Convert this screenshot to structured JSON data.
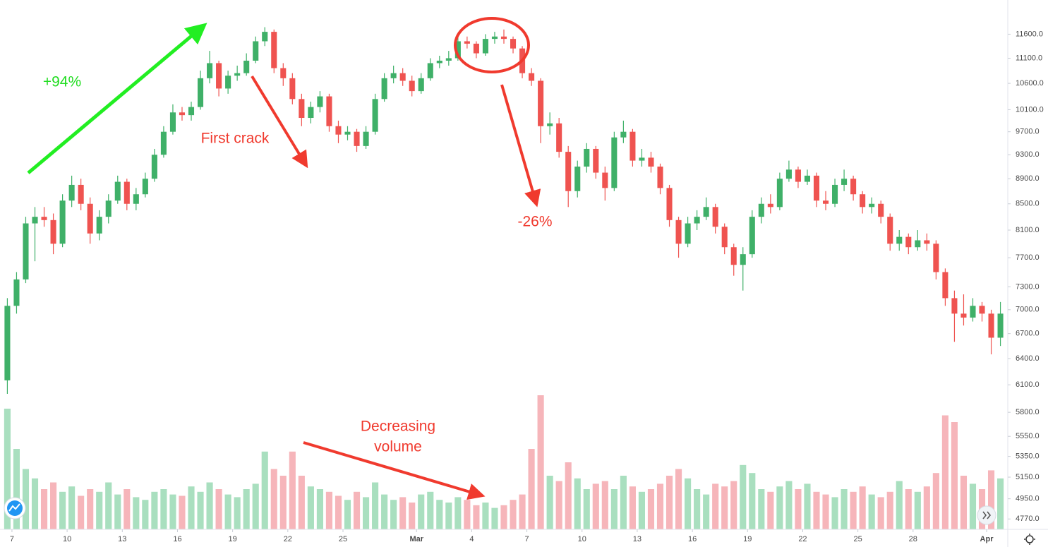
{
  "chart_data": {
    "type": "candlestick",
    "x": [
      -0.25,
      0.25,
      0.75,
      1.25,
      1.75,
      2.25,
      2.75,
      3.25,
      3.75,
      4.25,
      4.75,
      5.25,
      5.75,
      6.25,
      6.75,
      7.25,
      7.75,
      8.25,
      8.75,
      9.25,
      9.75,
      10.25,
      10.75,
      11.25,
      11.75,
      12.25,
      12.75,
      13.25,
      13.75,
      14.25,
      14.75,
      15.25,
      15.75,
      16.25,
      16.75,
      17.25,
      17.75,
      18.25,
      18.75,
      19.25,
      19.75,
      20.25,
      20.75,
      21.25,
      21.75,
      22.25,
      22.75,
      23.25,
      23.75,
      24.25,
      24.75,
      25.25,
      25.75,
      26.25,
      26.75,
      27.25,
      27.75,
      28.25,
      28.75,
      29.25,
      29.75,
      30.25,
      30.75,
      31.25,
      31.75,
      32.25,
      32.75,
      33.25,
      33.75,
      34.25,
      34.75,
      35.25,
      35.75,
      36.25,
      36.75,
      37.25,
      37.75,
      38.25,
      38.75,
      39.25,
      39.75,
      40.25,
      40.75,
      41.25,
      41.75,
      42.25,
      42.75,
      43.25,
      43.75,
      44.25,
      44.75,
      45.25,
      45.75,
      46.25,
      46.75,
      47.25,
      47.75,
      48.25,
      48.75,
      49.25,
      49.75,
      50.25,
      50.75,
      51.25,
      51.75,
      52.25,
      52.75,
      53.25,
      53.75
    ],
    "open": [
      6150,
      7050,
      7400,
      8200,
      8300,
      8250,
      7900,
      8550,
      8800,
      8500,
      8050,
      8300,
      8550,
      8850,
      8500,
      8650,
      8900,
      9300,
      9700,
      10050,
      10000,
      10150,
      10700,
      11000,
      10500,
      10750,
      10800,
      11050,
      11450,
      11650,
      10900,
      10700,
      10300,
      9950,
      10150,
      10350,
      9800,
      9650,
      9700,
      9450,
      9700,
      10300,
      10700,
      10800,
      10650,
      10450,
      10700,
      11000,
      11050,
      11100,
      11450,
      11400,
      11200,
      11500,
      11550,
      11500,
      11300,
      10800,
      10650,
      9800,
      9850,
      9350,
      8700,
      9100,
      9400,
      9000,
      8750,
      9600,
      9700,
      9200,
      9250,
      9100,
      8750,
      8250,
      7900,
      8200,
      8300,
      8450,
      8150,
      7850,
      7600,
      7750,
      8300,
      8500,
      8450,
      8900,
      9050,
      8850,
      8950,
      8550,
      8500,
      8800,
      8900,
      8650,
      8450,
      8500,
      8300,
      7900,
      8000,
      7850,
      7950,
      7900,
      7500,
      7150,
      6950,
      6900,
      7050,
      6950,
      6650
    ],
    "high": [
      7150,
      7500,
      8300,
      8450,
      8450,
      8350,
      8650,
      8950,
      8900,
      8600,
      8400,
      8650,
      8950,
      8900,
      8750,
      9000,
      9400,
      9800,
      10200,
      10150,
      10250,
      10850,
      11250,
      11050,
      10850,
      10950,
      11200,
      11550,
      11750,
      11700,
      11000,
      10800,
      10400,
      10250,
      10450,
      10400,
      9900,
      9800,
      9750,
      9800,
      10400,
      10800,
      10950,
      10900,
      10750,
      10800,
      11100,
      11150,
      11250,
      11550,
      11550,
      11450,
      11600,
      11650,
      11700,
      11550,
      11350,
      10900,
      10700,
      10050,
      9950,
      9450,
      9200,
      9500,
      9450,
      9100,
      9700,
      9900,
      9750,
      9400,
      9350,
      9150,
      8800,
      8300,
      8300,
      8400,
      8600,
      8500,
      8200,
      7900,
      7850,
      8400,
      8600,
      8650,
      9000,
      9200,
      9100,
      9050,
      9000,
      8700,
      8900,
      9050,
      8950,
      8700,
      8600,
      8550,
      8350,
      8100,
      8050,
      8100,
      8050,
      7950,
      7550,
      7250,
      7200,
      7150,
      7100,
      7000,
      7100
    ],
    "low": [
      6000,
      6950,
      7350,
      7650,
      8150,
      7750,
      7850,
      8450,
      8400,
      7900,
      7950,
      8200,
      8500,
      8400,
      8400,
      8600,
      8850,
      9250,
      9650,
      9900,
      9900,
      10100,
      10600,
      10350,
      10400,
      10650,
      10750,
      11000,
      11350,
      10800,
      10550,
      10200,
      9800,
      9850,
      10050,
      9700,
      9500,
      9550,
      9350,
      9400,
      9650,
      10250,
      10600,
      10550,
      10350,
      10400,
      10650,
      10900,
      10950,
      11050,
      11300,
      11100,
      11150,
      11400,
      11400,
      11200,
      10700,
      10550,
      9500,
      9650,
      9250,
      8450,
      8600,
      9000,
      8900,
      8550,
      8700,
      9500,
      9100,
      9100,
      9000,
      8650,
      8150,
      7700,
      7850,
      8100,
      8250,
      8050,
      7750,
      7450,
      7250,
      7700,
      8200,
      8350,
      8400,
      8850,
      8750,
      8800,
      8450,
      8400,
      8450,
      8700,
      8550,
      8350,
      8350,
      8200,
      7800,
      7800,
      7750,
      7800,
      7800,
      7400,
      7050,
      6600,
      6800,
      6850,
      6850,
      6450,
      6550
    ],
    "close": [
      7050,
      7400,
      8200,
      8300,
      8250,
      7900,
      8550,
      8800,
      8500,
      8050,
      8300,
      8550,
      8850,
      8500,
      8650,
      8900,
      9300,
      9700,
      10050,
      10000,
      10150,
      10700,
      11000,
      10500,
      10750,
      10800,
      11050,
      11450,
      11650,
      10900,
      10700,
      10300,
      9950,
      10150,
      10350,
      9800,
      9650,
      9700,
      9450,
      9700,
      10300,
      10700,
      10800,
      10650,
      10450,
      10700,
      11000,
      11050,
      11100,
      11450,
      11400,
      11200,
      11500,
      11550,
      11500,
      11300,
      10800,
      10650,
      9800,
      9850,
      9350,
      8700,
      9100,
      9400,
      9000,
      8750,
      9600,
      9700,
      9200,
      9250,
      9100,
      8750,
      8250,
      7900,
      8200,
      8300,
      8450,
      8150,
      7850,
      7600,
      7750,
      8300,
      8500,
      8450,
      8900,
      9050,
      8850,
      8950,
      8550,
      8500,
      8800,
      8900,
      8650,
      8450,
      8500,
      8300,
      7900,
      8000,
      7850,
      7950,
      7900,
      7500,
      7150,
      6950,
      6900,
      7050,
      6950,
      6650,
      6950
    ],
    "volume": [
      90,
      60,
      45,
      38,
      30,
      35,
      28,
      32,
      25,
      30,
      28,
      35,
      26,
      30,
      24,
      22,
      28,
      30,
      26,
      25,
      32,
      28,
      35,
      30,
      26,
      24,
      30,
      34,
      58,
      45,
      40,
      58,
      40,
      32,
      30,
      28,
      25,
      22,
      28,
      24,
      35,
      26,
      22,
      24,
      20,
      26,
      28,
      22,
      20,
      24,
      22,
      18,
      20,
      16,
      18,
      22,
      26,
      60,
      100,
      40,
      36,
      50,
      38,
      30,
      34,
      36,
      30,
      40,
      32,
      28,
      30,
      34,
      40,
      45,
      38,
      30,
      26,
      34,
      32,
      36,
      48,
      42,
      30,
      28,
      32,
      36,
      30,
      34,
      28,
      26,
      24,
      30,
      28,
      32,
      26,
      24,
      28,
      36,
      30,
      28,
      32,
      42,
      85,
      80,
      40,
      34,
      30,
      44,
      38
    ],
    "up_color": "#3fb068",
    "down_color": "#ef5350",
    "volume_up_color": "#a9dfbf",
    "volume_down_color": "#f6b5ba",
    "log_scale": true,
    "xlim": [
      -0.65,
      54.15
    ],
    "xticks": [
      {
        "value": 0,
        "label": "7"
      },
      {
        "value": 3,
        "label": "10"
      },
      {
        "value": 6,
        "label": "13"
      },
      {
        "value": 9,
        "label": "16"
      },
      {
        "value": 12,
        "label": "19"
      },
      {
        "value": 15,
        "label": "22"
      },
      {
        "value": 18,
        "label": "25"
      },
      {
        "value": 22,
        "label": "Mar"
      },
      {
        "value": 25,
        "label": "4"
      },
      {
        "value": 28,
        "label": "7"
      },
      {
        "value": 31,
        "label": "10"
      },
      {
        "value": 34,
        "label": "13"
      },
      {
        "value": 37,
        "label": "16"
      },
      {
        "value": 40,
        "label": "19"
      },
      {
        "value": 43,
        "label": "22"
      },
      {
        "value": 46,
        "label": "25"
      },
      {
        "value": 49,
        "label": "28"
      },
      {
        "value": 53,
        "label": "Apr"
      }
    ],
    "ylim": [
      4680,
      12350
    ],
    "yticks": [
      {
        "value": 11600,
        "label": "11600.0"
      },
      {
        "value": 11100,
        "label": "11100.0"
      },
      {
        "value": 10600,
        "label": "10600.0"
      },
      {
        "value": 10100,
        "label": "10100.0"
      },
      {
        "value": 9700,
        "label": "9700.0"
      },
      {
        "value": 9300,
        "label": "9300.0"
      },
      {
        "value": 8900,
        "label": "8900.0"
      },
      {
        "value": 8500,
        "label": "8500.0"
      },
      {
        "value": 8100,
        "label": "8100.0"
      },
      {
        "value": 7700,
        "label": "7700.0"
      },
      {
        "value": 7300,
        "label": "7300.0"
      },
      {
        "value": 7000,
        "label": "7000.0"
      },
      {
        "value": 6700,
        "label": "6700.0"
      },
      {
        "value": 6400,
        "label": "6400.0"
      },
      {
        "value": 6100,
        "label": "6100.0"
      },
      {
        "value": 5800,
        "label": "5800.0"
      },
      {
        "value": 5550,
        "label": "5550.0"
      },
      {
        "value": 5350,
        "label": "5350.0"
      },
      {
        "value": 5150,
        "label": "5150.0"
      },
      {
        "value": 4950,
        "label": "4950.0"
      },
      {
        "value": 4770,
        "label": "4770.0"
      }
    ],
    "annotations": [
      "+94%",
      "First crack",
      "-26%",
      "Decreasing",
      "volume"
    ]
  }
}
